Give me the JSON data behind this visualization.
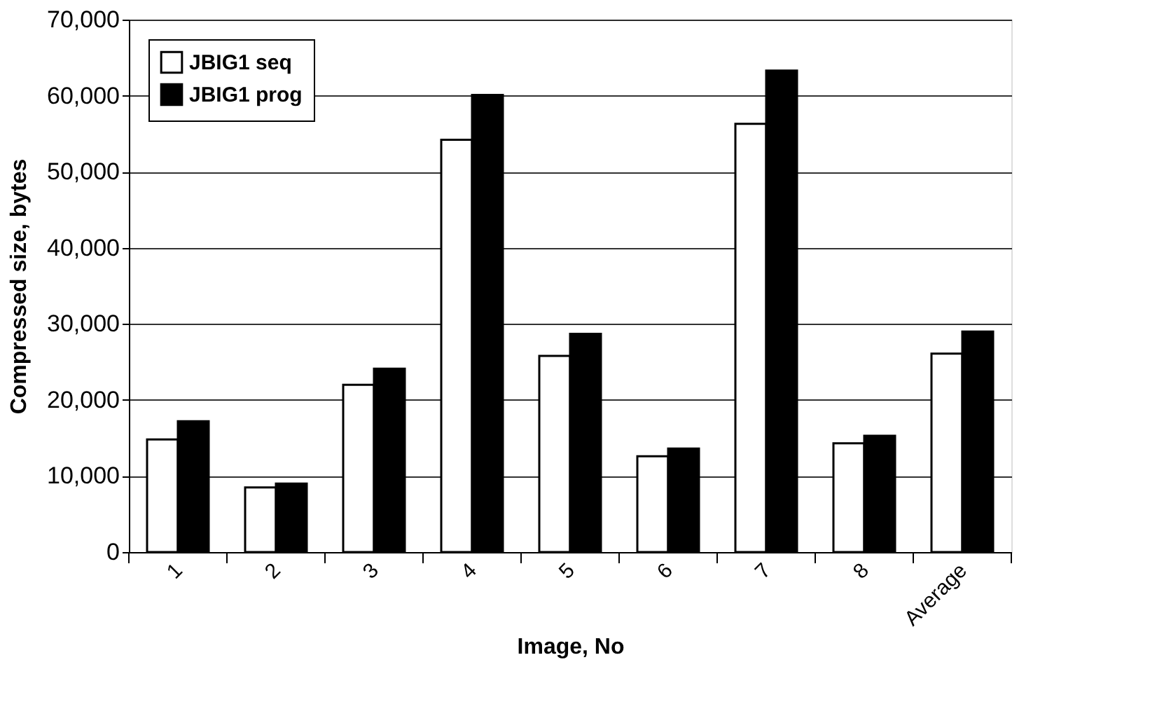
{
  "chart_data": {
    "type": "bar",
    "xlabel": "Image, No",
    "ylabel": "Compressed size, bytes",
    "categories": [
      "1",
      "2",
      "3",
      "4",
      "5",
      "6",
      "7",
      "8",
      "Average"
    ],
    "series": [
      {
        "name": "JBIG1 seq",
        "color": "#ffffff",
        "values": [
          14800,
          8500,
          22000,
          54200,
          25800,
          12600,
          56300,
          14300,
          26100
        ]
      },
      {
        "name": "JBIG1 prog",
        "color": "#000000",
        "values": [
          17200,
          9000,
          24100,
          60100,
          28700,
          13600,
          63300,
          15300,
          29000
        ]
      }
    ],
    "ylim": [
      0,
      70000
    ],
    "yticks": [
      0,
      {
        "value": 10000,
        "label": "10,000"
      },
      {
        "value": 20000,
        "label": "20,000"
      },
      {
        "value": 30000,
        "label": "30,000"
      },
      {
        "value": 40000,
        "label": "40,000"
      },
      {
        "value": 50000,
        "label": "50,000"
      },
      {
        "value": 60000,
        "label": "60,000"
      },
      {
        "value": 70000,
        "label": "70,000"
      }
    ],
    "grid": "y",
    "legend": "top left"
  }
}
